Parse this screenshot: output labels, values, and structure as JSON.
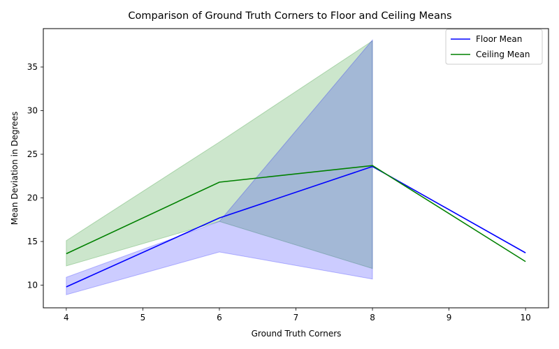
{
  "chart_data": {
    "type": "line",
    "title": "Comparison of Ground Truth Corners to Floor and Ceiling Means",
    "xlabel": "Ground Truth Corners",
    "ylabel": "Mean Deviation in Degrees",
    "xlim": [
      3.7,
      10.3
    ],
    "ylim": [
      7.4,
      39.4
    ],
    "xticks": [
      4,
      5,
      6,
      7,
      8,
      9,
      10
    ],
    "yticks": [
      10,
      15,
      20,
      25,
      30,
      35
    ],
    "grid": false,
    "legend_position": "top-right",
    "series": [
      {
        "name": "Floor Mean",
        "color": "#0000ff",
        "x": [
          4,
          6,
          8,
          10
        ],
        "y": [
          9.8,
          17.7,
          23.6,
          13.7
        ],
        "band_x": [
          4,
          6,
          8
        ],
        "band_lower": [
          8.9,
          13.8,
          10.7
        ],
        "band_upper": [
          10.9,
          17.3,
          38.1
        ]
      },
      {
        "name": "Ceiling Mean",
        "color": "#008000",
        "x": [
          4,
          6,
          8,
          10
        ],
        "y": [
          13.6,
          21.8,
          23.7,
          12.7
        ],
        "band_x": [
          4,
          6,
          8
        ],
        "band_lower": [
          12.2,
          17.3,
          11.9
        ],
        "band_upper": [
          15.1,
          26.4,
          38.0
        ]
      }
    ]
  }
}
